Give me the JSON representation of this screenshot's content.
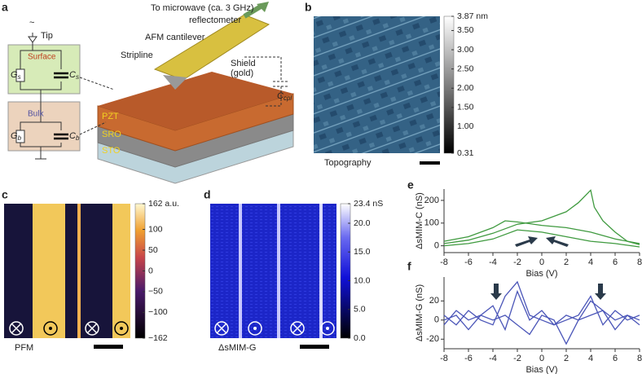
{
  "panel_labels": [
    "a",
    "b",
    "c",
    "d",
    "e",
    "f"
  ],
  "panel_a": {
    "microwave": "To microwave (ca. 3 GHz)",
    "reflectometer": "reflectometer",
    "cantilever": "AFM cantilever",
    "stripline": "Stripline",
    "shield": "Shield",
    "gold": "(gold)",
    "ccpl": "C",
    "ccpl_sub": "cpl",
    "tip": "Tip",
    "source": "~",
    "surface": "Surface",
    "gs": "G",
    "gs_sub": "s",
    "cs": "C",
    "cs_sub": "s",
    "bulk": "Bulk",
    "gb": "G",
    "gb_sub": "b",
    "cb": "C",
    "cb_sub": "b",
    "layers": [
      "PZT",
      "SRO",
      "STO"
    ]
  },
  "panel_b": {
    "caption": "Topography",
    "colorbar": {
      "clim": [
        0.31,
        3.87
      ],
      "ticks": [
        {
          "value": 3.87,
          "label": "3.87 nm"
        },
        {
          "value": 3.5,
          "label": "3.50"
        },
        {
          "value": 3,
          "label": "3.00"
        },
        {
          "value": 2.5,
          "label": "2.50"
        },
        {
          "value": 2,
          "label": "2.00"
        },
        {
          "value": 1.5,
          "label": "1.50"
        },
        {
          "value": 1,
          "label": "1.00"
        },
        {
          "value": 0.31,
          "label": "0.31"
        }
      ]
    }
  },
  "panel_c": {
    "caption": "PFM",
    "colorbar": {
      "clim": [
        -162,
        162
      ],
      "ticks": [
        {
          "value": 162,
          "label": "162 a.u."
        },
        100,
        50,
        0,
        {
          "value": -50,
          "label": "−50"
        },
        {
          "value": -100,
          "label": "−100"
        },
        {
          "value": -162,
          "label": "−162"
        }
      ]
    }
  },
  "panel_d": {
    "caption": "ΔsMIM-G",
    "colorbar": {
      "clim": [
        0,
        23.4
      ],
      "ticks": [
        {
          "value": 23.4,
          "label": "23.4 nS"
        },
        {
          "value": 20,
          "label": "20.0"
        },
        {
          "value": 15,
          "label": "15.0"
        },
        {
          "value": 10,
          "label": "10.0"
        },
        {
          "value": 5,
          "label": "5.0"
        },
        {
          "value": 0,
          "label": "0.0"
        }
      ]
    }
  },
  "chart_data": [
    {
      "type": "line",
      "ylabel": "ΔsMIM-C (nS)",
      "xlabel": "Bias (V)",
      "xlim": [
        -8,
        8
      ],
      "xticks": [
        -8,
        -6,
        -4,
        -2,
        0,
        2,
        4,
        6,
        8
      ],
      "ylim": [
        -30,
        250
      ],
      "yticks": [
        0,
        100,
        200
      ],
      "series": [
        {
          "color": "#3f9a3f",
          "x": [
            -8,
            -6,
            -4,
            -2,
            0,
            2,
            3,
            4,
            4.3,
            5,
            6,
            7,
            8
          ],
          "values": [
            10,
            25,
            55,
            95,
            110,
            150,
            190,
            245,
            170,
            110,
            60,
            20,
            5
          ]
        },
        {
          "color": "#3f9a3f",
          "x": [
            -8,
            -6,
            -4,
            -3,
            -2,
            0,
            2,
            4,
            6,
            8
          ],
          "values": [
            20,
            40,
            80,
            110,
            105,
            90,
            80,
            60,
            30,
            10
          ]
        },
        {
          "color": "#3f9a3f",
          "x": [
            -8,
            -6,
            -4,
            -2,
            0,
            2,
            4,
            6,
            8
          ],
          "values": [
            0,
            10,
            30,
            70,
            60,
            40,
            20,
            10,
            -5
          ]
        }
      ]
    },
    {
      "type": "line",
      "ylabel": "ΔsMIM-G (nS)",
      "xlabel": "Bias (V)",
      "xlim": [
        -8,
        8
      ],
      "xticks": [
        -8,
        -6,
        -4,
        -2,
        0,
        2,
        4,
        6,
        8
      ],
      "ylim": [
        -30,
        45
      ],
      "yticks": [
        -20,
        0,
        20
      ],
      "series": [
        {
          "color": "#4a55b8",
          "x": [
            -8,
            -7,
            -6,
            -5,
            -4,
            -3,
            -2,
            -1,
            0,
            1,
            2,
            3,
            4,
            5,
            6,
            7,
            8
          ],
          "values": [
            5,
            -5,
            10,
            0,
            -5,
            25,
            40,
            5,
            0,
            -5,
            5,
            0,
            20,
            10,
            0,
            5,
            -5
          ]
        },
        {
          "color": "#4a55b8",
          "x": [
            -8,
            -7,
            -6,
            -5,
            -4,
            -3,
            -2,
            -1,
            0,
            1,
            2,
            3,
            4,
            5,
            6,
            7,
            8
          ],
          "values": [
            -5,
            10,
            0,
            5,
            15,
            -10,
            30,
            0,
            10,
            -5,
            0,
            5,
            25,
            -5,
            10,
            0,
            5
          ]
        },
        {
          "color": "#4a55b8",
          "x": [
            -8,
            -7,
            -6,
            -5,
            -4,
            -3,
            -2,
            -1,
            0,
            1,
            2,
            3,
            4,
            5,
            6,
            7,
            8
          ],
          "values": [
            0,
            5,
            -10,
            5,
            0,
            5,
            -5,
            -15,
            5,
            0,
            -25,
            0,
            5,
            10,
            -10,
            5,
            0
          ]
        }
      ]
    }
  ]
}
